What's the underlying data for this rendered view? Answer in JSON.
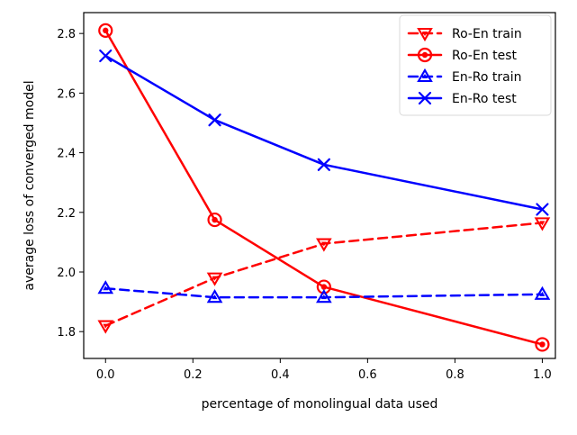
{
  "chart_data": {
    "type": "line",
    "title": "",
    "xlabel": "percentage of monolingual data used",
    "ylabel": "average loss of converged model",
    "xlim": [
      -0.05,
      1.03
    ],
    "ylim": [
      1.71,
      2.87
    ],
    "xticks": [
      0.0,
      0.2,
      0.4,
      0.6,
      0.8,
      1.0
    ],
    "xtick_labels": [
      "0.0",
      "0.2",
      "0.4",
      "0.6",
      "0.8",
      "1.0"
    ],
    "yticks": [
      1.8,
      2.0,
      2.2,
      2.4,
      2.6,
      2.8
    ],
    "ytick_labels": [
      "1.8",
      "2.0",
      "2.2",
      "2.4",
      "2.6",
      "2.8"
    ],
    "grid": false,
    "legend_position": "top-right",
    "series": [
      {
        "name": "Ro-En train",
        "x": [
          0.0,
          0.25,
          0.5,
          1.0
        ],
        "y": [
          1.82,
          1.98,
          2.095,
          2.165
        ],
        "color": "#ff0000",
        "line_style": "dashed",
        "marker": "triangle-down"
      },
      {
        "name": "Ro-En test",
        "x": [
          0.0,
          0.25,
          0.5,
          1.0
        ],
        "y": [
          2.81,
          2.175,
          1.95,
          1.757
        ],
        "color": "#ff0000",
        "line_style": "solid",
        "marker": "circle"
      },
      {
        "name": "En-Ro train",
        "x": [
          0.0,
          0.25,
          0.5,
          1.0
        ],
        "y": [
          1.945,
          1.915,
          1.915,
          1.925
        ],
        "color": "#0000ff",
        "line_style": "dashed",
        "marker": "triangle-up"
      },
      {
        "name": "En-Ro test",
        "x": [
          0.0,
          0.25,
          0.5,
          1.0
        ],
        "y": [
          2.725,
          2.51,
          2.36,
          2.21
        ],
        "color": "#0000ff",
        "line_style": "solid",
        "marker": "x"
      }
    ]
  }
}
